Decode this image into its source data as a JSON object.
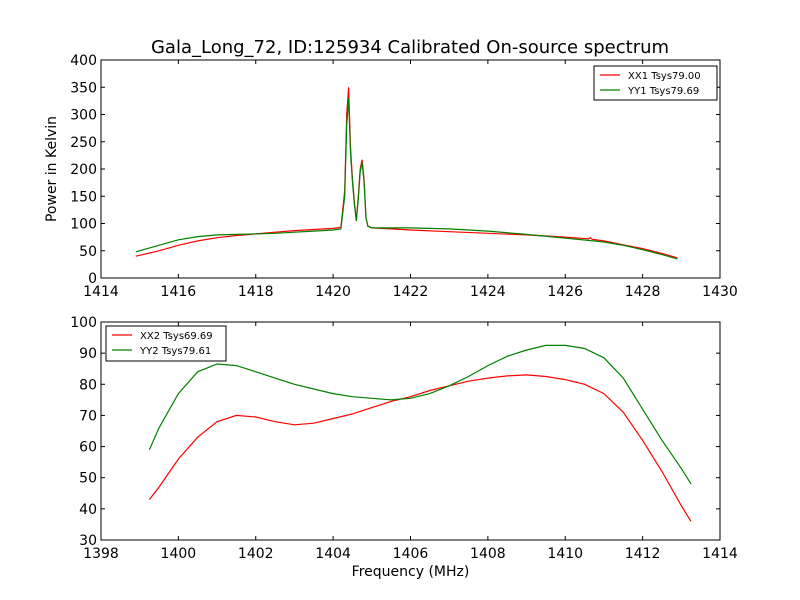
{
  "figure": {
    "title": "Gala_Long_72, ID:125934 Calibrated On-source spectrum"
  },
  "chart_data": [
    {
      "type": "line",
      "title": "Gala_Long_72, ID:125934 Calibrated On-source spectrum",
      "xlabel": "",
      "ylabel": "Power in Kelvin",
      "xlim": [
        1414,
        1430
      ],
      "ylim": [
        0,
        400
      ],
      "xticks": [
        1414,
        1416,
        1418,
        1420,
        1422,
        1424,
        1426,
        1428,
        1430
      ],
      "yticks": [
        0,
        50,
        100,
        150,
        200,
        250,
        300,
        350,
        400
      ],
      "grid": false,
      "legend": "top-right",
      "series": [
        {
          "name": "XX1 Tsys79.00",
          "color": "#ff0000",
          "x": [
            1414.9,
            1415.5,
            1416,
            1416.5,
            1417,
            1417.5,
            1418,
            1418.5,
            1419,
            1419.5,
            1420,
            1420.2,
            1420.3,
            1420.35,
            1420.4,
            1420.45,
            1420.5,
            1420.55,
            1420.6,
            1420.65,
            1420.7,
            1420.75,
            1420.8,
            1420.85,
            1420.9,
            1421,
            1421.5,
            1422,
            1423,
            1424,
            1425,
            1426,
            1426.6,
            1426.65,
            1426.7,
            1427,
            1427.5,
            1428,
            1428.5,
            1428.9
          ],
          "y": [
            40,
            50,
            60,
            68,
            74,
            78,
            81,
            84,
            87,
            89,
            91,
            93,
            160,
            300,
            350,
            240,
            180,
            140,
            105,
            150,
            200,
            217,
            180,
            110,
            95,
            92,
            90,
            88,
            85,
            82,
            79,
            75,
            72,
            74,
            71,
            68,
            61,
            54,
            45,
            37
          ]
        },
        {
          "name": "YY1 Tsys79.69",
          "color": "#008000",
          "x": [
            1414.9,
            1415.5,
            1416,
            1416.5,
            1417,
            1417.5,
            1418,
            1418.5,
            1419,
            1419.5,
            1420,
            1420.2,
            1420.3,
            1420.35,
            1420.4,
            1420.45,
            1420.5,
            1420.55,
            1420.6,
            1420.65,
            1420.7,
            1420.75,
            1420.8,
            1420.85,
            1420.9,
            1421,
            1421.5,
            1422,
            1423,
            1424,
            1425,
            1426,
            1426.6,
            1427,
            1427.5,
            1428,
            1428.5,
            1428.9
          ],
          "y": [
            48,
            60,
            70,
            76,
            79,
            80,
            81,
            82,
            84,
            86,
            88,
            90,
            150,
            280,
            330,
            230,
            175,
            135,
            105,
            145,
            195,
            212,
            175,
            110,
            95,
            92,
            92,
            92,
            90,
            86,
            80,
            73,
            69,
            66,
            60,
            52,
            43,
            35
          ]
        }
      ]
    },
    {
      "type": "line",
      "title": "",
      "xlabel": "Frequency (MHz)",
      "ylabel": "",
      "xlim": [
        1398,
        1414
      ],
      "ylim": [
        30,
        100
      ],
      "xticks": [
        1398,
        1400,
        1402,
        1404,
        1406,
        1408,
        1410,
        1412,
        1414
      ],
      "yticks": [
        30,
        40,
        50,
        60,
        70,
        80,
        90,
        100
      ],
      "grid": false,
      "legend": "top-left",
      "series": [
        {
          "name": "XX2 Tsys69.69",
          "color": "#ff0000",
          "x": [
            1399.25,
            1399.5,
            1400,
            1400.5,
            1401,
            1401.5,
            1402,
            1402.5,
            1403,
            1403.5,
            1404,
            1404.5,
            1405,
            1405.5,
            1406,
            1406.5,
            1407,
            1407.5,
            1408,
            1408.5,
            1409,
            1409.5,
            1410,
            1410.5,
            1411,
            1411.5,
            1412,
            1412.5,
            1413,
            1413.25
          ],
          "y": [
            43,
            47,
            56,
            63,
            68,
            70,
            69.5,
            68,
            67,
            67.5,
            69,
            70.5,
            72.5,
            74.5,
            76,
            78,
            79.5,
            81,
            82,
            82.7,
            83,
            82.5,
            81.5,
            80,
            77,
            71,
            62,
            52,
            41,
            36
          ]
        },
        {
          "name": "YY2 Tsys79.61",
          "color": "#008000",
          "x": [
            1399.25,
            1399.5,
            1400,
            1400.5,
            1401,
            1401.5,
            1402,
            1402.5,
            1403,
            1403.5,
            1404,
            1404.5,
            1405,
            1405.5,
            1406,
            1406.5,
            1407,
            1407.5,
            1408,
            1408.5,
            1409,
            1409.5,
            1410,
            1410.5,
            1411,
            1411.5,
            1412,
            1412.5,
            1413,
            1413.25
          ],
          "y": [
            59,
            66,
            77,
            84,
            86.5,
            86,
            84,
            82,
            80,
            78.5,
            77,
            76,
            75.5,
            75,
            75.5,
            77,
            79.5,
            82.5,
            86,
            89,
            91,
            92.5,
            92.5,
            91.5,
            88.5,
            82,
            72,
            62,
            53,
            48
          ]
        }
      ]
    }
  ]
}
